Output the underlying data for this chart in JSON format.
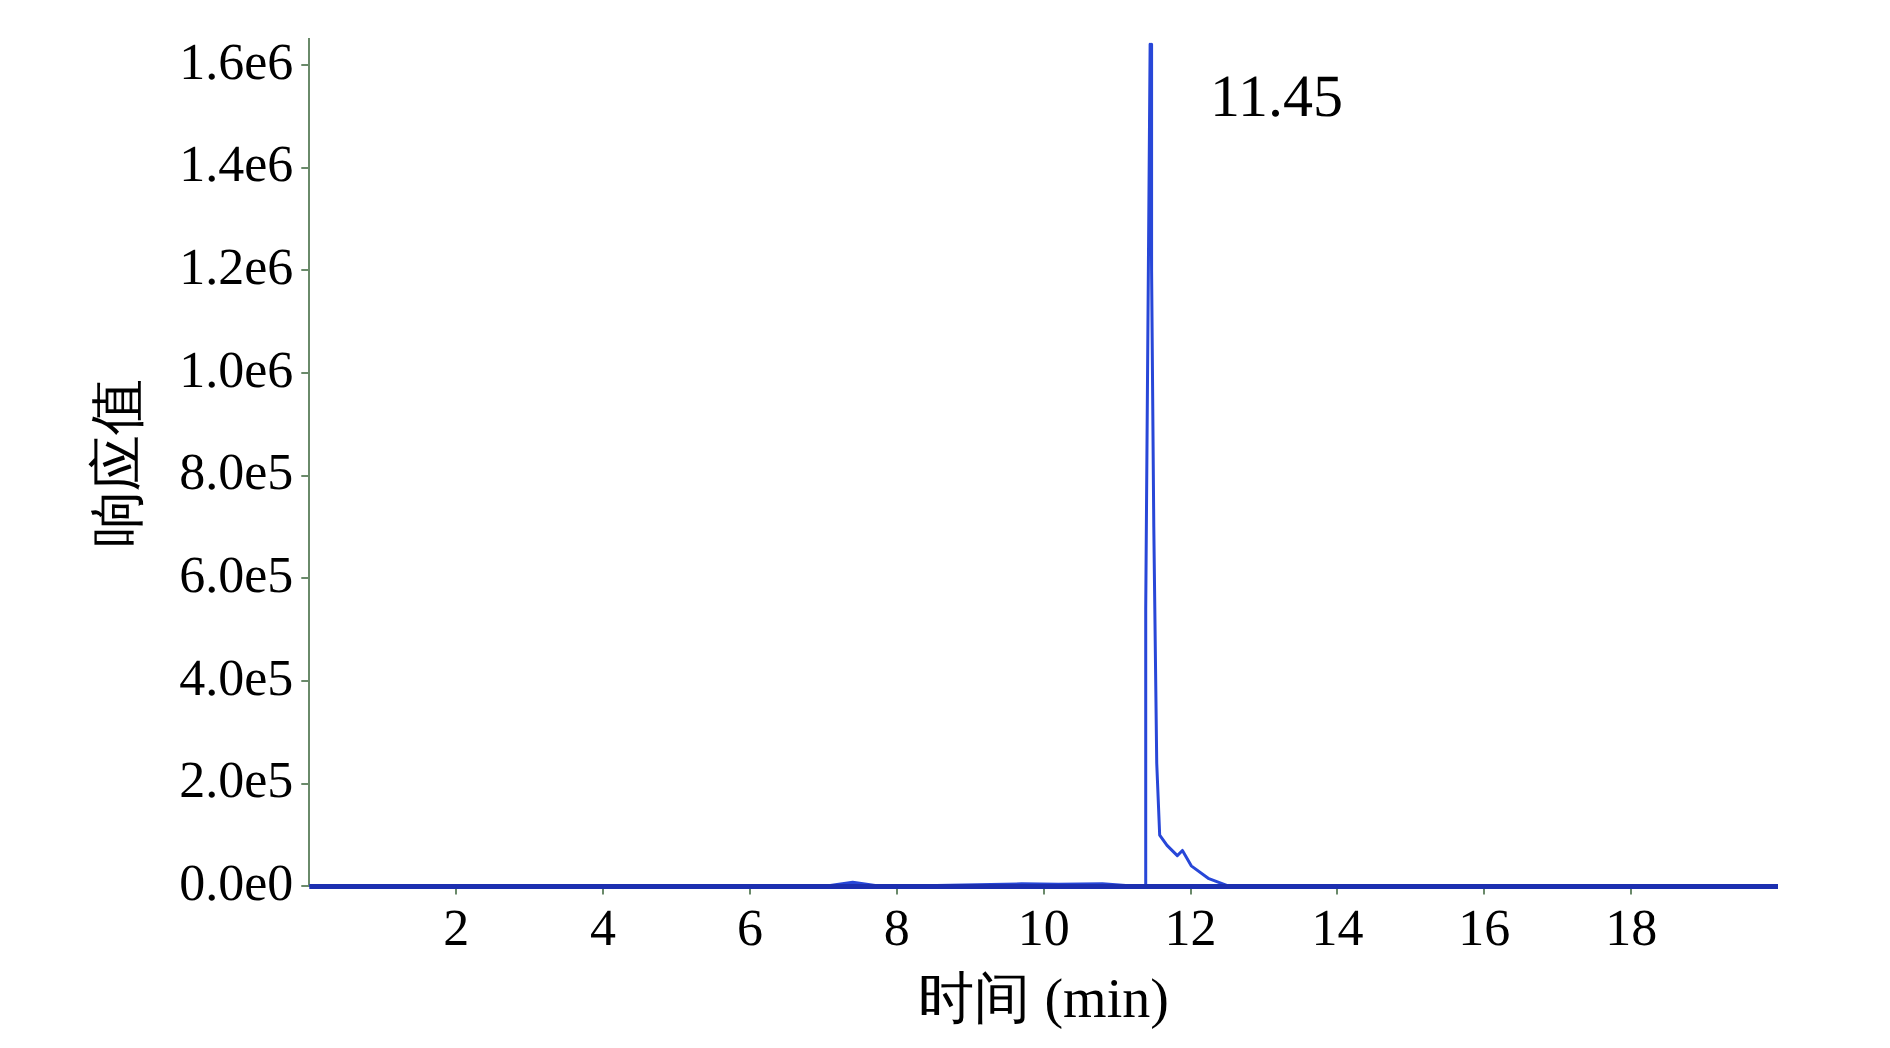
{
  "chart_data": {
    "type": "line",
    "xlabel": "时间 (min)",
    "ylabel": "响应值",
    "xlim": [
      0,
      20
    ],
    "xticks": [
      2,
      4,
      6,
      8,
      10,
      12,
      14,
      16,
      18
    ],
    "ylim": [
      0,
      1650000
    ],
    "yticks": [
      {
        "value": 0,
        "label": "0.0e0"
      },
      {
        "value": 200000,
        "label": "2.0e5"
      },
      {
        "value": 400000,
        "label": "4.0e5"
      },
      {
        "value": 600000,
        "label": "6.0e5"
      },
      {
        "value": 800000,
        "label": "8.0e5"
      },
      {
        "value": 1000000,
        "label": "1.0e6"
      },
      {
        "value": 1200000,
        "label": "1.2e6"
      },
      {
        "value": 1400000,
        "label": "1.4e6"
      },
      {
        "value": 1600000,
        "label": "1.6e6"
      }
    ],
    "grid": false,
    "legend": false,
    "marker": "none",
    "line_style": "solid",
    "annotations": [
      {
        "text": "11.45",
        "x": 11.45,
        "y": 1640000
      }
    ],
    "series": [
      {
        "color": "#2847d8",
        "x": [
          0,
          2.8,
          7.0,
          7.4,
          7.8,
          9.7,
          10.2,
          10.8,
          11.3,
          11.37,
          11.39,
          11.45,
          11.47,
          11.5,
          11.54,
          11.58,
          11.68,
          11.82,
          11.89,
          12.01,
          12.25,
          12.53,
          14,
          16,
          18,
          20
        ],
        "values": [
          0,
          0,
          0,
          8000,
          0,
          5000,
          4000,
          5000,
          0,
          0,
          540000,
          1640000,
          1200000,
          700000,
          240000,
          100000,
          80000,
          60000,
          70000,
          40000,
          15000,
          0,
          0,
          0,
          0,
          0
        ]
      }
    ]
  }
}
